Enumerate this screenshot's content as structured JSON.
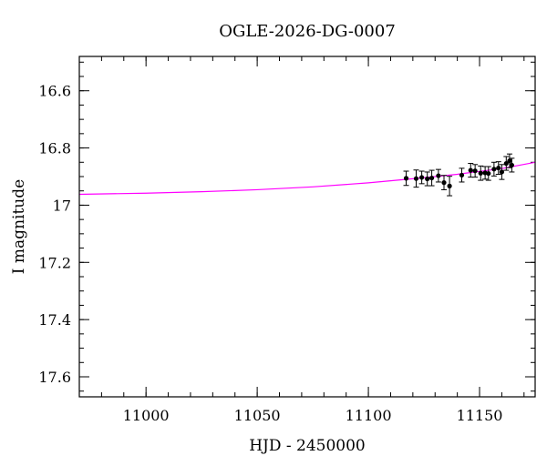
{
  "chart_data": {
    "type": "scatter",
    "title": "OGLE-2026-DG-0007",
    "xlabel": "HJD - 2450000",
    "ylabel": "I magnitude",
    "xlim": [
      10970,
      11175
    ],
    "ylim": [
      17.67,
      16.48
    ],
    "y_inverted": true,
    "grid": false,
    "x_ticks": [
      11000,
      11050,
      11100,
      11150
    ],
    "y_ticks": [
      16.6,
      16.8,
      17,
      17.2,
      17.4,
      17.6
    ],
    "y_tick_labels": [
      "16.6",
      "16.8",
      "17",
      "17.2",
      "17.4",
      "17.6"
    ],
    "x_minor_step": 10,
    "y_minor_step": 0.05,
    "colors": {
      "points": "#000000",
      "model": "#ff00ff",
      "axes": "#000000"
    },
    "series": [
      {
        "type": "scatter_errorbar",
        "x": [
          11117,
          11121.5,
          11124,
          11126.5,
          11128.5,
          11131.5,
          11134,
          11136.5,
          11142,
          11146,
          11148,
          11150.5,
          11152.5,
          11154,
          11156.5,
          11158.5,
          11160,
          11162,
          11163.5,
          11164.5
        ],
        "y": [
          16.906,
          16.907,
          16.903,
          16.908,
          16.905,
          16.897,
          16.921,
          16.933,
          16.895,
          16.878,
          16.88,
          16.888,
          16.887,
          16.889,
          16.874,
          16.87,
          16.884,
          16.854,
          16.845,
          16.86
        ],
        "err": [
          0.025,
          0.03,
          0.022,
          0.024,
          0.027,
          0.022,
          0.025,
          0.034,
          0.024,
          0.024,
          0.022,
          0.025,
          0.022,
          0.024,
          0.024,
          0.022,
          0.026,
          0.024,
          0.024,
          0.024
        ]
      },
      {
        "type": "line",
        "x": [
          10970,
          11000,
          11025,
          11050,
          11075,
          11100,
          11125,
          11140,
          11150,
          11160,
          11175
        ],
        "y": [
          16.962,
          16.958,
          16.953,
          16.946,
          16.936,
          16.922,
          16.904,
          16.892,
          16.882,
          16.872,
          16.85
        ]
      }
    ]
  }
}
